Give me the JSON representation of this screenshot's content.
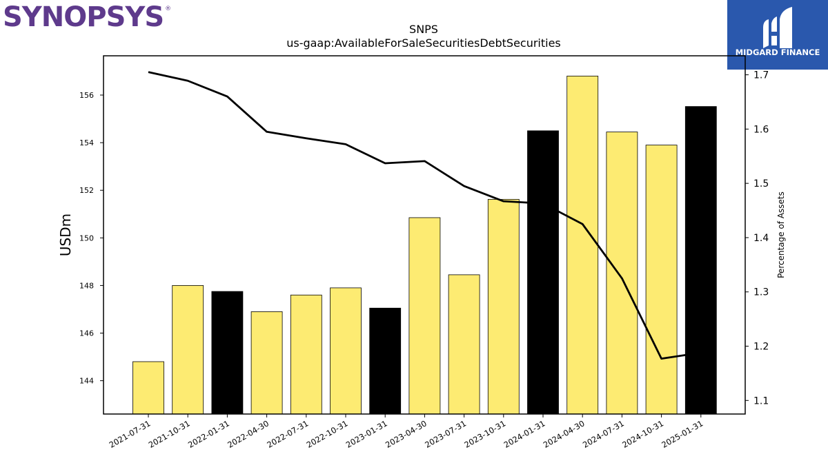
{
  "logos": {
    "left_text": "SYNOPSYS",
    "left_mark": "®",
    "right_text": "MIDGARD FINANCE"
  },
  "colors": {
    "bar_default": "#fdeb72",
    "bar_highlight": "#000000",
    "line": "#000000",
    "logo_left": "#5e3a8c",
    "logo_right_bg": "#2a58ad"
  },
  "chart_data": {
    "type": "bar",
    "title": "SNPS",
    "subtitle": "us-gaap:AvailableForSaleSecuritiesDebtSecurities",
    "ylabel": "USDm",
    "y2label": "Percentage of Assets",
    "ylim": [
      142.6,
      157.65
    ],
    "y2lim": [
      1.075,
      1.735
    ],
    "yticks": [
      "144",
      "146",
      "148",
      "150",
      "152",
      "154",
      "156"
    ],
    "y2ticks": [
      "1.1",
      "1.2",
      "1.3",
      "1.4",
      "1.5",
      "1.6",
      "1.7"
    ],
    "categories": [
      "2021-07-31",
      "2021-10-31",
      "2022-01-31",
      "2022-04-30",
      "2022-07-31",
      "2022-10-31",
      "2023-01-31",
      "2023-04-30",
      "2023-07-31",
      "2023-10-31",
      "2024-01-31",
      "2024-04-30",
      "2024-07-31",
      "2024-10-31",
      "2025-01-31"
    ],
    "series": [
      {
        "type": "bar",
        "axis": "left",
        "values": [
          144.8,
          148.0,
          147.75,
          146.9,
          147.6,
          147.9,
          147.05,
          150.85,
          148.45,
          151.62,
          154.5,
          156.8,
          154.45,
          153.9,
          155.52
        ],
        "highlight": [
          false,
          false,
          true,
          false,
          false,
          false,
          true,
          false,
          false,
          false,
          true,
          false,
          false,
          false,
          true
        ]
      },
      {
        "type": "line",
        "axis": "right",
        "values": [
          1.705,
          1.689,
          1.66,
          1.595,
          1.583,
          1.572,
          1.537,
          1.541,
          1.495,
          1.467,
          1.463,
          1.425,
          1.325,
          1.177,
          1.188
        ]
      }
    ],
    "legend": "none",
    "grid": false
  }
}
